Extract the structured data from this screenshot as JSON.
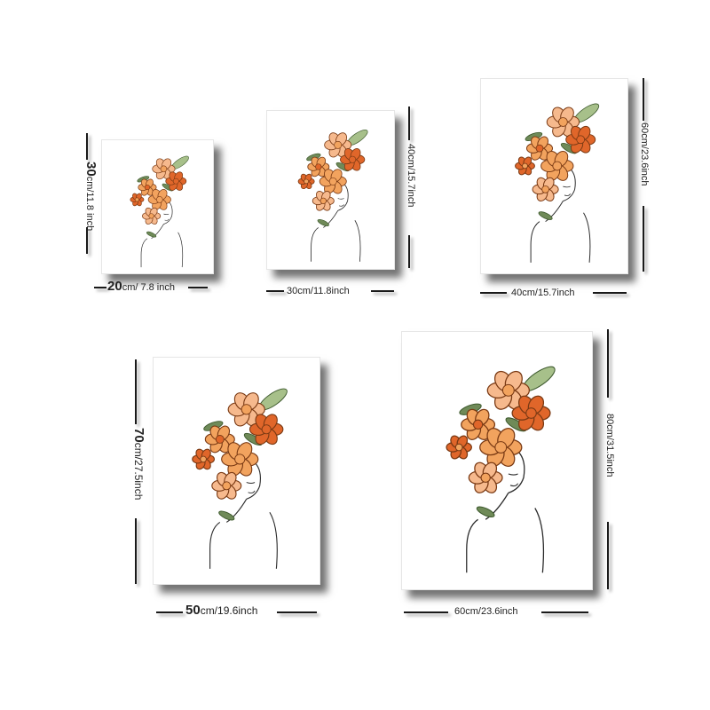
{
  "background_color": "#ffffff",
  "palette": {
    "orange_dark": "#e0662a",
    "orange_mid": "#f2a35e",
    "peach": "#f6b98d",
    "leaf_green": "#6f8a58",
    "leaf_light": "#a7c08a",
    "line": "#2b2b2b"
  },
  "icons": [
    "floral-head-line-art-illustration"
  ],
  "sizes": [
    {
      "width_label": {
        "num": "20",
        "unit": "cm/ 7.8 inch"
      },
      "height_label": {
        "num": "30",
        "unit": "cm/11.8 inch"
      }
    },
    {
      "width_label": {
        "num": "30cm/11.8inch",
        "unit": ""
      },
      "height_label": {
        "num": "40cm/15.7inch",
        "unit": ""
      }
    },
    {
      "width_label": {
        "num": "40cm/15.7inch",
        "unit": ""
      },
      "height_label": {
        "num": "60cm/23.6inch",
        "unit": ""
      }
    },
    {
      "width_label": {
        "num": "50",
        "unit": "cm/19.6inch"
      },
      "height_label": {
        "num": "70",
        "unit": "cm/27.5inch"
      }
    },
    {
      "width_label": {
        "num": "60cm/23.6inch",
        "unit": ""
      },
      "height_label": {
        "num": "80cm/31.5inch",
        "unit": ""
      }
    }
  ]
}
